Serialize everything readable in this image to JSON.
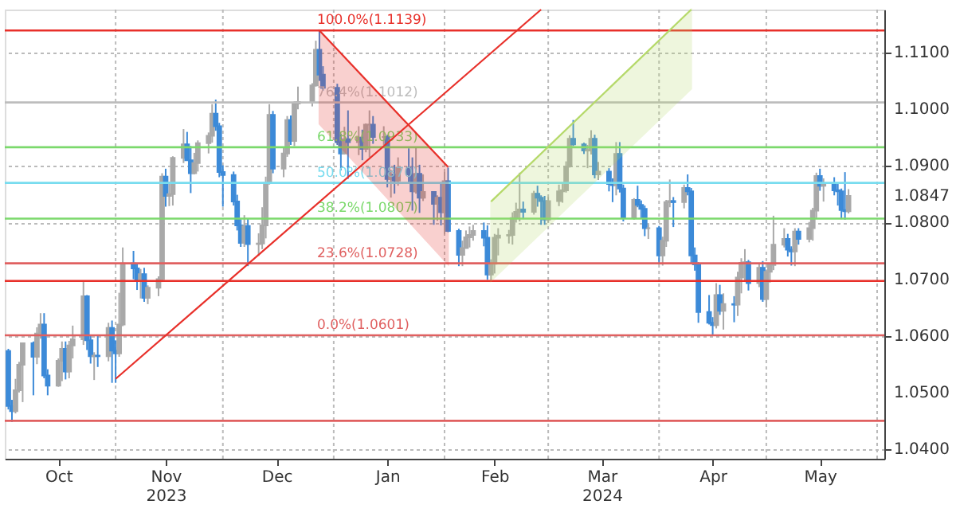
{
  "chart_data": {
    "type": "candlestick",
    "x": [
      "2023-10-02",
      "2023-10-03",
      "2023-10-04",
      "2023-10-05",
      "2023-10-06",
      "2023-10-09",
      "2023-10-10",
      "2023-10-11",
      "2023-10-12",
      "2023-10-13",
      "2023-10-16",
      "2023-10-17",
      "2023-10-18",
      "2023-10-19",
      "2023-10-20",
      "2023-10-23",
      "2023-10-24",
      "2023-10-25",
      "2023-10-26",
      "2023-10-27",
      "2023-10-30",
      "2023-10-31",
      "2023-11-01",
      "2023-11-02",
      "2023-11-03",
      "2023-11-06",
      "2023-11-07",
      "2023-11-08",
      "2023-11-09",
      "2023-11-10",
      "2023-11-13",
      "2023-11-14",
      "2023-11-15",
      "2023-11-16",
      "2023-11-17",
      "2023-11-20",
      "2023-11-21",
      "2023-11-22",
      "2023-11-23",
      "2023-11-24",
      "2023-11-27",
      "2023-11-28",
      "2023-11-29",
      "2023-11-30",
      "2023-12-01",
      "2023-12-04",
      "2023-12-05",
      "2023-12-06",
      "2023-12-07",
      "2023-12-08",
      "2023-12-11",
      "2023-12-12",
      "2023-12-13",
      "2023-12-14",
      "2023-12-15",
      "2023-12-18",
      "2023-12-19",
      "2023-12-20",
      "2023-12-21",
      "2023-12-22",
      "2023-12-26",
      "2023-12-27",
      "2023-12-28",
      "2023-12-29",
      "2024-01-02",
      "2024-01-03",
      "2024-01-04",
      "2024-01-05",
      "2024-01-08",
      "2024-01-09",
      "2024-01-10",
      "2024-01-11",
      "2024-01-12",
      "2024-01-15",
      "2024-01-16",
      "2024-01-17",
      "2024-01-18",
      "2024-01-19",
      "2024-01-22",
      "2024-01-23",
      "2024-01-24",
      "2024-01-25",
      "2024-01-26",
      "2024-01-29",
      "2024-01-30",
      "2024-01-31",
      "2024-02-01",
      "2024-02-02",
      "2024-02-05",
      "2024-02-06",
      "2024-02-07",
      "2024-02-08",
      "2024-02-09",
      "2024-02-12",
      "2024-02-13",
      "2024-02-14",
      "2024-02-15",
      "2024-02-16",
      "2024-02-19",
      "2024-02-20",
      "2024-02-21",
      "2024-02-22",
      "2024-02-23",
      "2024-02-26",
      "2024-02-27",
      "2024-02-28",
      "2024-02-29",
      "2024-03-01",
      "2024-03-04",
      "2024-03-05",
      "2024-03-06",
      "2024-03-07",
      "2024-03-08",
      "2024-03-11",
      "2024-03-12",
      "2024-03-13",
      "2024-03-14",
      "2024-03-15",
      "2024-03-18",
      "2024-03-19",
      "2024-03-20",
      "2024-03-21",
      "2024-03-22",
      "2024-03-25",
      "2024-03-26",
      "2024-03-27",
      "2024-03-28",
      "2024-03-29",
      "2024-04-01",
      "2024-04-02",
      "2024-04-03",
      "2024-04-04",
      "2024-04-05",
      "2024-04-08",
      "2024-04-09",
      "2024-04-10",
      "2024-04-11",
      "2024-04-12",
      "2024-04-15",
      "2024-04-16",
      "2024-04-17",
      "2024-04-18",
      "2024-04-19",
      "2024-04-22",
      "2024-04-23",
      "2024-04-24",
      "2024-04-25",
      "2024-04-26",
      "2024-04-29",
      "2024-04-30",
      "2024-05-01",
      "2024-05-02",
      "2024-05-03",
      "2024-05-06",
      "2024-05-07",
      "2024-05-08",
      "2024-05-09",
      "2024-05-10",
      "2024-05-13",
      "2024-05-14",
      "2024-05-15",
      "2024-05-16",
      "2024-05-17",
      "2024-05-20",
      "2024-05-21",
      "2024-05-22",
      "2024-05-23",
      "2024-05-24"
    ],
    "ohlc": [
      [
        1.0573,
        1.0577,
        1.047,
        1.0476
      ],
      [
        1.0476,
        1.0487,
        1.0448,
        1.0467
      ],
      [
        1.0467,
        1.0524,
        1.0463,
        1.0504
      ],
      [
        1.0504,
        1.0554,
        1.05,
        1.0549
      ],
      [
        1.0549,
        1.0588,
        1.0483,
        1.0587
      ],
      [
        1.0587,
        1.059,
        1.0495,
        1.0563
      ],
      [
        1.0563,
        1.0615,
        1.055,
        1.0604
      ],
      [
        1.0604,
        1.064,
        1.0595,
        1.062
      ],
      [
        1.062,
        1.064,
        1.0525,
        1.053
      ],
      [
        1.053,
        1.0541,
        1.0495,
        1.0512
      ],
      [
        1.0512,
        1.056,
        1.051,
        1.0556
      ],
      [
        1.0556,
        1.059,
        1.052,
        1.0577
      ],
      [
        1.0577,
        1.059,
        1.0523,
        1.0537
      ],
      [
        1.0537,
        1.0591,
        1.0525,
        1.0583
      ],
      [
        1.0583,
        1.0618,
        1.056,
        1.0594
      ],
      [
        1.0594,
        1.0695,
        1.0584,
        1.067
      ],
      [
        1.067,
        1.0672,
        1.0575,
        1.0592
      ],
      [
        1.0592,
        1.06,
        1.0551,
        1.0564
      ],
      [
        1.0564,
        1.0571,
        1.0522,
        1.0565
      ],
      [
        1.0565,
        1.06,
        1.0545,
        1.0564
      ],
      [
        1.0564,
        1.0623,
        1.0555,
        1.0614
      ],
      [
        1.0614,
        1.0627,
        1.0517,
        1.0574
      ],
      [
        1.0574,
        1.0592,
        1.0517,
        1.0569
      ],
      [
        1.0569,
        1.0676,
        1.0563,
        1.062
      ],
      [
        1.062,
        1.0756,
        1.0617,
        1.0728
      ],
      [
        1.0728,
        1.075,
        1.07,
        1.0719
      ],
      [
        1.0719,
        1.0727,
        1.0681,
        1.0698
      ],
      [
        1.0698,
        1.0718,
        1.0666,
        1.0709
      ],
      [
        1.0709,
        1.072,
        1.066,
        1.0667
      ],
      [
        1.0667,
        1.0689,
        1.0656,
        1.0685
      ],
      [
        1.0685,
        1.0705,
        1.067,
        1.07
      ],
      [
        1.07,
        1.0887,
        1.0695,
        1.0881
      ],
      [
        1.0881,
        1.0895,
        1.0828,
        1.0847
      ],
      [
        1.0847,
        1.0872,
        1.0829,
        1.085
      ],
      [
        1.085,
        1.0917,
        1.083,
        1.0914
      ],
      [
        1.0914,
        1.0965,
        1.0905,
        1.0938
      ],
      [
        1.0938,
        1.096,
        1.0909,
        1.091
      ],
      [
        1.091,
        1.0935,
        1.0852,
        1.0887
      ],
      [
        1.0887,
        1.0923,
        1.0885,
        1.0905
      ],
      [
        1.0905,
        1.0945,
        1.089,
        1.094
      ],
      [
        1.094,
        1.0959,
        1.0922,
        1.0953
      ],
      [
        1.0953,
        1.1009,
        1.0941,
        1.0992
      ],
      [
        1.0992,
        1.1017,
        1.0962,
        1.097
      ],
      [
        1.097,
        1.0976,
        1.088,
        1.0889
      ],
      [
        1.0889,
        1.0901,
        1.0828,
        1.0884
      ],
      [
        1.0884,
        1.089,
        1.083,
        1.0837
      ],
      [
        1.0837,
        1.0849,
        1.0786,
        1.0795
      ],
      [
        1.0795,
        1.0806,
        1.0757,
        1.0764
      ],
      [
        1.0764,
        1.0813,
        1.0757,
        1.0794
      ],
      [
        1.0794,
        1.0807,
        1.0723,
        1.0762
      ],
      [
        1.0762,
        1.0781,
        1.0741,
        1.0763
      ],
      [
        1.0763,
        1.0827,
        1.0753,
        1.0795
      ],
      [
        1.0795,
        1.0881,
        1.0772,
        1.087
      ],
      [
        1.087,
        1.1009,
        1.0867,
        1.099
      ],
      [
        1.099,
        1.0997,
        1.0887,
        1.0895
      ],
      [
        1.0895,
        1.0934,
        1.088,
        1.0922
      ],
      [
        1.0922,
        1.0988,
        1.0916,
        1.0981
      ],
      [
        1.0981,
        1.0989,
        1.0937,
        1.0944
      ],
      [
        1.0944,
        1.1014,
        1.0935,
        1.101
      ],
      [
        1.101,
        1.104,
        1.1,
        1.1013
      ],
      [
        1.1013,
        1.1046,
        1.1005,
        1.1042
      ],
      [
        1.1042,
        1.1121,
        1.104,
        1.1105
      ],
      [
        1.1105,
        1.1139,
        1.105,
        1.1061
      ],
      [
        1.1061,
        1.1076,
        1.1033,
        1.1038
      ],
      [
        1.1038,
        1.1045,
        1.0937,
        1.0942
      ],
      [
        1.0942,
        1.0957,
        1.0892,
        1.0922
      ],
      [
        1.0922,
        1.0969,
        1.092,
        1.0947
      ],
      [
        1.0947,
        1.0998,
        1.0877,
        1.0942
      ],
      [
        1.0942,
        1.097,
        1.0919,
        1.095
      ],
      [
        1.095,
        1.0964,
        1.091,
        1.093
      ],
      [
        1.093,
        1.0975,
        1.0924,
        1.0973
      ],
      [
        1.0973,
        1.0998,
        1.0915,
        1.0973
      ],
      [
        1.0973,
        1.0988,
        1.0939,
        1.0951
      ],
      [
        1.0951,
        1.097,
        1.0937,
        1.0951
      ],
      [
        1.0951,
        1.0955,
        1.0862,
        1.0877
      ],
      [
        1.0877,
        1.0893,
        1.0844,
        1.0885
      ],
      [
        1.0885,
        1.0902,
        1.0851,
        1.0874
      ],
      [
        1.0874,
        1.0915,
        1.0865,
        1.0897
      ],
      [
        1.0897,
        1.0931,
        1.0871,
        1.0885
      ],
      [
        1.0885,
        1.0915,
        1.0821,
        1.0855
      ],
      [
        1.0855,
        1.0932,
        1.0851,
        1.0886
      ],
      [
        1.0886,
        1.0902,
        1.0817,
        1.0844
      ],
      [
        1.0844,
        1.0885,
        1.0838,
        1.0854
      ],
      [
        1.0854,
        1.0855,
        1.0796,
        1.0833
      ],
      [
        1.0833,
        1.0848,
        1.0803,
        1.0844
      ],
      [
        1.0844,
        1.087,
        1.0795,
        1.0818
      ],
      [
        1.0818,
        1.0889,
        1.078,
        1.0873
      ],
      [
        1.0873,
        1.0897,
        1.0783,
        1.0785
      ],
      [
        1.0785,
        1.0789,
        1.0723,
        1.0743
      ],
      [
        1.0743,
        1.0768,
        1.0723,
        1.0755
      ],
      [
        1.0755,
        1.0786,
        1.0754,
        1.0774
      ],
      [
        1.0774,
        1.0793,
        1.0756,
        1.0778
      ],
      [
        1.0778,
        1.0796,
        1.0768,
        1.0785
      ],
      [
        1.0785,
        1.08,
        1.0758,
        1.0773
      ],
      [
        1.0773,
        1.0795,
        1.0699,
        1.0708
      ],
      [
        1.0708,
        1.0735,
        1.0697,
        1.0727
      ],
      [
        1.0727,
        1.078,
        1.071,
        1.0773
      ],
      [
        1.0773,
        1.079,
        1.0742,
        1.0777
      ],
      [
        1.0777,
        1.0787,
        1.0763,
        1.0778
      ],
      [
        1.0778,
        1.0818,
        1.0761,
        1.0808
      ],
      [
        1.0808,
        1.0835,
        1.08,
        1.0819
      ],
      [
        1.0819,
        1.0888,
        1.0802,
        1.0823
      ],
      [
        1.0823,
        1.0837,
        1.0806,
        1.0819
      ],
      [
        1.0819,
        1.0856,
        1.0814,
        1.0851
      ],
      [
        1.0851,
        1.0865,
        1.0828,
        1.0844
      ],
      [
        1.0844,
        1.0848,
        1.0796,
        1.0838
      ],
      [
        1.0838,
        1.0847,
        1.0796,
        1.0805
      ],
      [
        1.0805,
        1.0845,
        1.08,
        1.0838
      ],
      [
        1.0838,
        1.0867,
        1.0829,
        1.0855
      ],
      [
        1.0855,
        1.0868,
        1.0835,
        1.0857
      ],
      [
        1.0857,
        1.0908,
        1.0853,
        1.0899
      ],
      [
        1.0899,
        1.0954,
        1.0897,
        1.0948
      ],
      [
        1.0948,
        1.0981,
        1.0935,
        1.0938
      ],
      [
        1.0938,
        1.0941,
        1.0921,
        1.0927
      ],
      [
        1.0927,
        1.0937,
        1.0896,
        1.0928
      ],
      [
        1.0928,
        1.0963,
        1.092,
        1.0948
      ],
      [
        1.0948,
        1.0955,
        1.0878,
        1.0885
      ],
      [
        1.0885,
        1.0907,
        1.0875,
        1.089
      ],
      [
        1.089,
        1.0896,
        1.0855,
        1.0868
      ],
      [
        1.0868,
        1.0878,
        1.0836,
        1.0866
      ],
      [
        1.0866,
        1.0942,
        1.0848,
        1.0921
      ],
      [
        1.0921,
        1.0942,
        1.0853,
        1.086
      ],
      [
        1.086,
        1.0867,
        1.0802,
        1.0808
      ],
      [
        1.0808,
        1.0843,
        1.0805,
        1.084
      ],
      [
        1.084,
        1.0865,
        1.0827,
        1.0831
      ],
      [
        1.0831,
        1.0839,
        1.0807,
        1.0824
      ],
      [
        1.0824,
        1.083,
        1.0776,
        1.079
      ],
      [
        1.079,
        1.0797,
        1.0771,
        1.079
      ],
      [
        1.079,
        1.0794,
        1.0728,
        1.0742
      ],
      [
        1.0742,
        1.0775,
        1.0724,
        1.0768
      ],
      [
        1.0768,
        1.084,
        1.0757,
        1.0836
      ],
      [
        1.0836,
        1.0876,
        1.0827,
        1.0838
      ],
      [
        1.0838,
        1.0845,
        1.0792,
        1.0836
      ],
      [
        1.0836,
        1.0867,
        1.0825,
        1.0861
      ],
      [
        1.0861,
        1.0885,
        1.0848,
        1.0855
      ],
      [
        1.0855,
        1.0861,
        1.0728,
        1.0742
      ],
      [
        1.0742,
        1.0756,
        1.0715,
        1.0726
      ],
      [
        1.0726,
        1.073,
        1.0623,
        1.0642
      ],
      [
        1.0642,
        1.0672,
        1.062,
        1.0623
      ],
      [
        1.0623,
        1.0633,
        1.0601,
        1.0619
      ],
      [
        1.0619,
        1.0693,
        1.0613,
        1.0672
      ],
      [
        1.0672,
        1.069,
        1.0637,
        1.0644
      ],
      [
        1.0644,
        1.0675,
        1.0611,
        1.0656
      ],
      [
        1.0656,
        1.067,
        1.0624,
        1.0655
      ],
      [
        1.0655,
        1.0713,
        1.0635,
        1.0703
      ],
      [
        1.0703,
        1.0737,
        1.0675,
        1.0729
      ],
      [
        1.0729,
        1.0753,
        1.0695,
        1.073
      ],
      [
        1.073,
        1.0734,
        1.068,
        1.0693
      ],
      [
        1.0693,
        1.0727,
        1.0686,
        1.072
      ],
      [
        1.072,
        1.0732,
        1.066,
        1.0665
      ],
      [
        1.0665,
        1.0717,
        1.065,
        1.0713
      ],
      [
        1.0713,
        1.0728,
        1.0694,
        1.0725
      ],
      [
        1.0725,
        1.0812,
        1.0716,
        1.0761
      ],
      [
        1.0761,
        1.079,
        1.0756,
        1.0771
      ],
      [
        1.0771,
        1.078,
        1.074,
        1.0752
      ],
      [
        1.0752,
        1.0758,
        1.0724,
        1.0749
      ],
      [
        1.0749,
        1.079,
        1.0723,
        1.0784
      ],
      [
        1.0784,
        1.079,
        1.0761,
        1.0771
      ],
      [
        1.0771,
        1.0801,
        1.0765,
        1.079
      ],
      [
        1.079,
        1.0826,
        1.0768,
        1.0821
      ],
      [
        1.0821,
        1.0888,
        1.0808,
        1.0882
      ],
      [
        1.0882,
        1.0895,
        1.0856,
        1.0865
      ],
      [
        1.0865,
        1.0878,
        1.0837,
        1.0869
      ],
      [
        1.0869,
        1.088,
        1.0848,
        1.0857
      ],
      [
        1.0857,
        1.0868,
        1.083,
        1.0855
      ],
      [
        1.0855,
        1.086,
        1.0806,
        1.0822
      ],
      [
        1.0822,
        1.0889,
        1.0805,
        1.082
      ],
      [
        1.082,
        1.0859,
        1.0816,
        1.0847
      ]
    ],
    "colors": [
      "#3c8ad8",
      "#3c8ad8",
      "#a9a9a9",
      "#a9a9a9",
      "#a9a9a9",
      "#3c8ad8",
      "#a9a9a9",
      "#a9a9a9",
      "#3c8ad8",
      "#3c8ad8",
      "#a9a9a9",
      "#a9a9a9",
      "#3c8ad8",
      "#a9a9a9",
      "#a9a9a9",
      "#a9a9a9",
      "#3c8ad8",
      "#3c8ad8",
      "#a9a9a9",
      "#3c8ad8",
      "#a9a9a9",
      "#3c8ad8",
      "#3c8ad8",
      "#a9a9a9",
      "#a9a9a9",
      "#3c8ad8",
      "#3c8ad8",
      "#a9a9a9",
      "#3c8ad8",
      "#a9a9a9",
      "#a9a9a9",
      "#a9a9a9",
      "#3c8ad8",
      "#a9a9a9",
      "#a9a9a9",
      "#a9a9a9",
      "#3c8ad8",
      "#3c8ad8",
      "#a9a9a9",
      "#a9a9a9",
      "#a9a9a9",
      "#a9a9a9",
      "#3c8ad8",
      "#3c8ad8",
      "#3c8ad8",
      "#3c8ad8",
      "#3c8ad8",
      "#3c8ad8",
      "#a9a9a9",
      "#3c8ad8",
      "#a9a9a9",
      "#a9a9a9",
      "#a9a9a9",
      "#a9a9a9",
      "#3c8ad8",
      "#a9a9a9",
      "#a9a9a9",
      "#3c8ad8",
      "#a9a9a9",
      "#a9a9a9",
      "#a9a9a9",
      "#a9a9a9",
      "#3c8ad8",
      "#3c8ad8",
      "#3c8ad8",
      "#3c8ad8",
      "#a9a9a9",
      "#3c8ad8",
      "#a9a9a9",
      "#3c8ad8",
      "#a9a9a9",
      "#a9a9a9",
      "#3c8ad8",
      "#a9a9a9",
      "#3c8ad8",
      "#a9a9a9",
      "#3c8ad8",
      "#a9a9a9",
      "#3c8ad8",
      "#3c8ad8",
      "#a9a9a9",
      "#3c8ad8",
      "#a9a9a9",
      "#3c8ad8",
      "#a9a9a9",
      "#3c8ad8",
      "#a9a9a9",
      "#3c8ad8",
      "#3c8ad8",
      "#a9a9a9",
      "#a9a9a9",
      "#a9a9a9",
      "#a9a9a9",
      "#3c8ad8",
      "#3c8ad8",
      "#a9a9a9",
      "#a9a9a9",
      "#a9a9a9",
      "#a9a9a9",
      "#a9a9a9",
      "#a9a9a9",
      "#a9a9a9",
      "#3c8ad8",
      "#a9a9a9",
      "#3c8ad8",
      "#3c8ad8",
      "#3c8ad8",
      "#a9a9a9",
      "#a9a9a9",
      "#a9a9a9",
      "#a9a9a9",
      "#a9a9a9",
      "#3c8ad8",
      "#3c8ad8",
      "#a9a9a9",
      "#a9a9a9",
      "#3c8ad8",
      "#a9a9a9",
      "#3c8ad8",
      "#3c8ad8",
      "#a9a9a9",
      "#3c8ad8",
      "#3c8ad8",
      "#a9a9a9",
      "#3c8ad8",
      "#3c8ad8",
      "#3c8ad8",
      "#a9a9a9",
      "#3c8ad8",
      "#a9a9a9",
      "#a9a9a9",
      "#a9a9a9",
      "#3c8ad8",
      "#a9a9a9",
      "#3c8ad8",
      "#3c8ad8",
      "#3c8ad8",
      "#3c8ad8",
      "#3c8ad8",
      "#3c8ad8",
      "#a9a9a9",
      "#3c8ad8",
      "#a9a9a9",
      "#3c8ad8",
      "#a9a9a9",
      "#a9a9a9",
      "#a9a9a9",
      "#3c8ad8",
      "#a9a9a9",
      "#3c8ad8",
      "#a9a9a9",
      "#a9a9a9",
      "#a9a9a9",
      "#a9a9a9",
      "#3c8ad8",
      "#3c8ad8",
      "#a9a9a9",
      "#3c8ad8",
      "#a9a9a9",
      "#a9a9a9",
      "#a9a9a9",
      "#3c8ad8",
      "#a9a9a9",
      "#3c8ad8",
      "#3c8ad8",
      "#3c8ad8",
      "#3c8ad8",
      "#a9a9a9"
    ],
    "xlim": [
      "2023-10-01",
      "2024-06-03"
    ],
    "xticks": [
      {
        "value": "2023-10-16",
        "label": "Oct"
      },
      {
        "value": "2023-11-01",
        "label": null
      },
      {
        "value": "2023-11-15",
        "label": "Nov\n2023"
      },
      {
        "value": "2023-12-01",
        "label": null
      },
      {
        "value": "2023-12-16",
        "label": "Dec"
      },
      {
        "value": "2024-01-01",
        "label": null
      },
      {
        "value": "2024-01-16",
        "label": "Jan"
      },
      {
        "value": "2024-02-01",
        "label": null
      },
      {
        "value": "2024-02-15",
        "label": "Feb"
      },
      {
        "value": "2024-03-01",
        "label": null
      },
      {
        "value": "2024-03-16",
        "label": "Mar\n2024"
      },
      {
        "value": "2024-04-01",
        "label": null
      },
      {
        "value": "2024-04-16",
        "label": "Apr"
      },
      {
        "value": "2024-05-01",
        "label": null
      },
      {
        "value": "2024-05-16",
        "label": "May"
      },
      {
        "value": "2024-06-01",
        "label": null
      }
    ],
    "ylim": [
      1.0383,
      1.1176
    ],
    "yticks": [
      {
        "value": 1.04,
        "label": "1.0400"
      },
      {
        "value": 1.05,
        "label": "1.0500"
      },
      {
        "value": 1.06,
        "label": "1.0600"
      },
      {
        "value": 1.07,
        "label": "1.0700"
      },
      {
        "value": 1.08,
        "label": "1.0800"
      },
      {
        "value": 1.0847,
        "label": "1.0847"
      },
      {
        "value": 1.09,
        "label": "1.0900"
      },
      {
        "value": 1.1,
        "label": "1.1000"
      },
      {
        "value": 1.11,
        "label": "1.1100"
      }
    ],
    "grid": true,
    "ref_lines": [
      {
        "axis": "y",
        "value": 1.1139,
        "label": "100.0%(1.1139)",
        "color": "#e8302a"
      },
      {
        "axis": "y",
        "value": 1.1012,
        "label": "76.4%(1.1012)",
        "color": "#bdbdbd"
      },
      {
        "axis": "y",
        "value": 1.0933,
        "label": "61.8%(1.0933)",
        "color": "#7bd96c"
      },
      {
        "axis": "y",
        "value": 1.087,
        "label": "50.0%(1.0870)",
        "color": "#78dcef"
      },
      {
        "axis": "y",
        "value": 1.0807,
        "label": "38.2%(1.0807)",
        "color": "#7bd96c"
      },
      {
        "axis": "y",
        "value": 1.0728,
        "label": "23.6%(1.0728)",
        "color": "#e06060"
      },
      {
        "axis": "y",
        "value": 1.0697,
        "color": "#e8302a"
      },
      {
        "axis": "y",
        "value": 1.0601,
        "label": "0.0%(1.0601)",
        "color": "#e06060"
      },
      {
        "axis": "y",
        "value": 1.045,
        "color": "#e06060"
      }
    ],
    "series": [
      {
        "type": "line",
        "color": "#e8302a",
        "x": [
          "2023-12-28",
          "2024-02-02"
        ],
        "values": [
          1.1139,
          1.0898
        ],
        "lower": [
          1.0974,
          1.0726
        ],
        "upper": [
          1.1139,
          1.0898
        ]
      },
      {
        "type": "line",
        "color": "#b5d96a",
        "x": [
          "2024-02-14",
          "2024-04-10"
        ],
        "values": [
          1.0837,
          1.1176
        ],
        "lower": [
          1.0697,
          1.1036
        ],
        "upper": [
          1.0837,
          1.1176
        ]
      },
      {
        "type": "line",
        "color": "#e8302a",
        "x": [
          "2023-11-01",
          "2024-02-28"
        ],
        "values": [
          1.0524,
          1.1176
        ]
      }
    ]
  }
}
